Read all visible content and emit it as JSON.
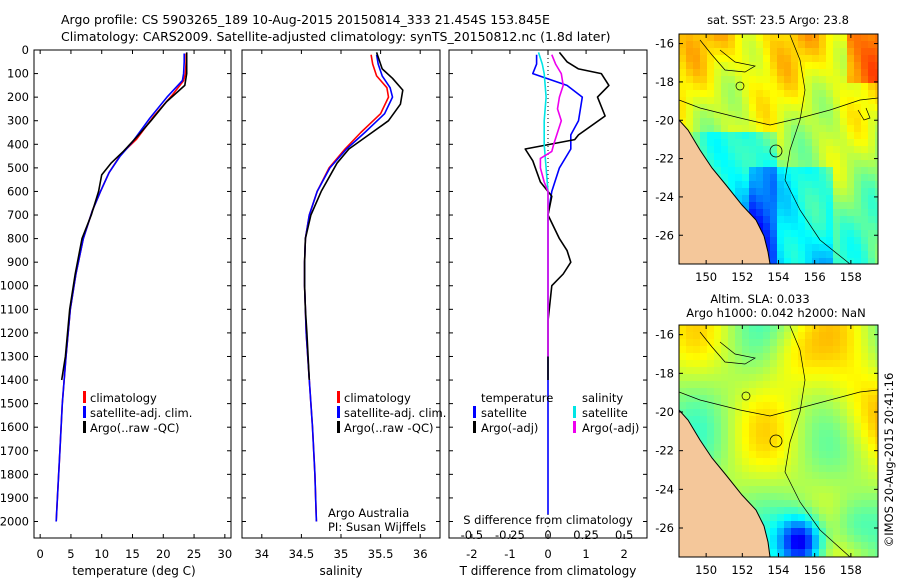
{
  "header": {
    "line1": "Argo profile: CS 5903265_189 10-Aug-2015 20150814_333 21.454S 153.845E",
    "line2": "Climatology: CARS2009. Satellite-adjusted climatology: synTS_20150812.nc (1.8d later)"
  },
  "credit": "©IMOS 20-Aug-2015 20:41:16",
  "colors": {
    "climatology": "#ff0000",
    "satellite": "#0000ff",
    "argo": "#000000",
    "sal_satellite": "#00e5e5",
    "sal_argo": "#ee00ee",
    "land": "#f4c79a"
  },
  "chart_data": [
    {
      "type": "line",
      "id": "temperature",
      "xlabel": "temperature (deg C)",
      "xlim": [
        -1,
        31
      ],
      "xticks": [
        0,
        5,
        10,
        15,
        20,
        25,
        30
      ],
      "ylim": [
        0,
        2070
      ],
      "yticks": [
        0,
        100,
        200,
        300,
        400,
        500,
        600,
        700,
        800,
        900,
        1000,
        1100,
        1200,
        1300,
        1400,
        1500,
        1600,
        1700,
        1800,
        1900,
        2000
      ],
      "legend": [
        "climatology",
        "satellite-adj. clim.",
        "Argo(..raw -QC)"
      ],
      "series": [
        {
          "name": "climatology",
          "color": "#ff0000",
          "points": [
            [
              23.7,
              15
            ],
            [
              23.7,
              50
            ],
            [
              23.6,
              100
            ],
            [
              23.3,
              130
            ],
            [
              21.5,
              190
            ],
            [
              18.5,
              280
            ],
            [
              15.6,
              380
            ],
            [
              13.2,
              440
            ],
            [
              11.2,
              520
            ],
            [
              9.8,
              600
            ],
            [
              8.5,
              680
            ],
            [
              7.0,
              800
            ],
            [
              5.8,
              950
            ],
            [
              4.9,
              1100
            ],
            [
              4.2,
              1300
            ],
            [
              3.6,
              1500
            ],
            [
              3.2,
              1700
            ],
            [
              2.8,
              1900
            ],
            [
              2.6,
              2000
            ]
          ]
        },
        {
          "name": "satellite-adj. clim.",
          "color": "#0000ff",
          "points": [
            [
              23.4,
              15
            ],
            [
              23.4,
              50
            ],
            [
              23.3,
              100
            ],
            [
              23.1,
              130
            ],
            [
              20.6,
              200
            ],
            [
              17.8,
              290
            ],
            [
              15.0,
              390
            ],
            [
              13.0,
              450
            ],
            [
              11.2,
              520
            ],
            [
              9.8,
              600
            ],
            [
              8.5,
              680
            ],
            [
              7.0,
              800
            ],
            [
              5.8,
              950
            ],
            [
              4.9,
              1100
            ],
            [
              4.2,
              1300
            ],
            [
              3.6,
              1500
            ],
            [
              3.2,
              1700
            ],
            [
              2.8,
              1900
            ],
            [
              2.6,
              2000
            ]
          ]
        },
        {
          "name": "Argo(..raw -QC)",
          "color": "#000000",
          "points": [
            [
              23.8,
              10
            ],
            [
              23.8,
              50
            ],
            [
              23.8,
              100
            ],
            [
              23.5,
              150
            ],
            [
              20.5,
              220
            ],
            [
              18.0,
              300
            ],
            [
              16.0,
              360
            ],
            [
              13.5,
              430
            ],
            [
              11.5,
              480
            ],
            [
              10.0,
              530
            ],
            [
              9.5,
              600
            ],
            [
              8.3,
              700
            ],
            [
              6.8,
              800
            ],
            [
              5.7,
              950
            ],
            [
              4.8,
              1100
            ],
            [
              4.1,
              1300
            ],
            [
              3.5,
              1400
            ]
          ]
        }
      ]
    },
    {
      "type": "line",
      "id": "salinity",
      "xlabel": "salinity",
      "xlim": [
        33.75,
        36.25
      ],
      "xticks": [
        34,
        34.5,
        35,
        35.5,
        36
      ],
      "ylim": [
        0,
        2070
      ],
      "legend": [
        "climatology",
        "satellite-adj. clim.",
        "Argo(..raw -QC)"
      ],
      "note": [
        "Argo Australia",
        "PI: Susan Wijffels"
      ],
      "series": [
        {
          "name": "climatology",
          "color": "#ff0000",
          "points": [
            [
              35.38,
              20
            ],
            [
              35.4,
              60
            ],
            [
              35.45,
              110
            ],
            [
              35.58,
              160
            ],
            [
              35.6,
              200
            ],
            [
              35.5,
              270
            ],
            [
              35.25,
              350
            ],
            [
              35.05,
              420
            ],
            [
              34.85,
              500
            ],
            [
              34.7,
              600
            ],
            [
              34.6,
              700
            ],
            [
              34.55,
              800
            ],
            [
              34.54,
              900
            ],
            [
              34.54,
              1000
            ],
            [
              34.56,
              1200
            ],
            [
              34.6,
              1400
            ],
            [
              34.64,
              1600
            ],
            [
              34.67,
              1800
            ],
            [
              34.69,
              2000
            ]
          ]
        },
        {
          "name": "satellite-adj. clim.",
          "color": "#0000ff",
          "points": [
            [
              35.45,
              20
            ],
            [
              35.47,
              60
            ],
            [
              35.52,
              110
            ],
            [
              35.62,
              160
            ],
            [
              35.65,
              200
            ],
            [
              35.55,
              270
            ],
            [
              35.3,
              350
            ],
            [
              35.07,
              420
            ],
            [
              34.86,
              500
            ],
            [
              34.7,
              600
            ],
            [
              34.6,
              700
            ],
            [
              34.55,
              800
            ],
            [
              34.54,
              900
            ],
            [
              34.54,
              1000
            ],
            [
              34.56,
              1200
            ],
            [
              34.6,
              1400
            ],
            [
              34.64,
              1600
            ],
            [
              34.67,
              1800
            ],
            [
              34.69,
              2000
            ]
          ]
        },
        {
          "name": "Argo(..raw -QC)",
          "color": "#000000",
          "points": [
            [
              35.45,
              10
            ],
            [
              35.52,
              80
            ],
            [
              35.65,
              120
            ],
            [
              35.78,
              170
            ],
            [
              35.75,
              230
            ],
            [
              35.6,
              300
            ],
            [
              35.35,
              360
            ],
            [
              35.1,
              420
            ],
            [
              34.95,
              480
            ],
            [
              34.85,
              540
            ],
            [
              34.75,
              600
            ],
            [
              34.62,
              700
            ],
            [
              34.55,
              800
            ],
            [
              34.54,
              900
            ],
            [
              34.54,
              1000
            ],
            [
              34.55,
              1100
            ],
            [
              34.57,
              1200
            ],
            [
              34.6,
              1400
            ]
          ]
        }
      ]
    },
    {
      "type": "line",
      "id": "differences",
      "xlabel": "T difference from climatology",
      "xlabel2": "S difference from climatology",
      "xlim": [
        -2.6,
        2.6
      ],
      "xticks": [
        -2,
        -1,
        0,
        1,
        2
      ],
      "xticks2": [
        -0.5,
        -0.25,
        0,
        0.25,
        0.5
      ],
      "xticklabels2": [
        "-0.5",
        "-0.25",
        "0",
        "0.25",
        "0.5"
      ],
      "legend_temperature": {
        "title": "temperature",
        "items": [
          "satellite",
          "Argo(-adj)"
        ]
      },
      "legend_salinity": {
        "title": "salinity",
        "items": [
          "satellite",
          "Argo(-adj)"
        ]
      },
      "series": [
        {
          "name": "T satellite",
          "color": "#0000ff",
          "points": [
            [
              -0.3,
              20
            ],
            [
              -0.3,
              60
            ],
            [
              -0.4,
              100
            ],
            [
              0.5,
              150
            ],
            [
              0.9,
              200
            ],
            [
              0.8,
              300
            ],
            [
              0.6,
              360
            ],
            [
              0.6,
              420
            ],
            [
              0.3,
              500
            ],
            [
              0.1,
              600
            ],
            [
              0.0,
              700
            ],
            [
              0.0,
              800
            ],
            [
              0.0,
              1300
            ],
            [
              0.0,
              1400
            ],
            [
              0.0,
              1600
            ],
            [
              0.0,
              1800
            ],
            [
              0.0,
              1970
            ]
          ]
        },
        {
          "name": "T Argo(-adj)",
          "color": "#000000",
          "points": [
            [
              0.3,
              10
            ],
            [
              0.5,
              50
            ],
            [
              0.8,
              80
            ],
            [
              1.4,
              100
            ],
            [
              1.6,
              150
            ],
            [
              1.3,
              200
            ],
            [
              1.5,
              280
            ],
            [
              0.8,
              360
            ],
            [
              0.7,
              380
            ],
            [
              -0.6,
              420
            ],
            [
              -0.4,
              470
            ],
            [
              -0.2,
              560
            ],
            [
              0.1,
              620
            ],
            [
              0.0,
              700
            ],
            [
              0.3,
              800
            ],
            [
              0.5,
              850
            ],
            [
              0.6,
              900
            ],
            [
              0.4,
              950
            ],
            [
              0.1,
              1000
            ],
            [
              0.0,
              1150
            ],
            [
              0.0,
              1300
            ],
            [
              0.0,
              1400
            ]
          ]
        },
        {
          "name": "S satellite",
          "color": "#00e5e5",
          "points": [
            [
              -0.25,
              10
            ],
            [
              -0.15,
              60
            ],
            [
              -0.1,
              100
            ],
            [
              -0.05,
              200
            ],
            [
              -0.1,
              300
            ],
            [
              -0.1,
              400
            ],
            [
              -0.05,
              500
            ],
            [
              0.0,
              600
            ],
            [
              0.0,
              700
            ],
            [
              0.0,
              900
            ],
            [
              0.0,
              1100
            ],
            [
              0.0,
              1300
            ]
          ]
        },
        {
          "name": "S Argo(-adj)",
          "color": "#ee00ee",
          "points": [
            [
              0.1,
              20
            ],
            [
              0.2,
              60
            ],
            [
              0.35,
              100
            ],
            [
              0.4,
              150
            ],
            [
              0.3,
              200
            ],
            [
              0.25,
              250
            ],
            [
              0.35,
              300
            ],
            [
              0.25,
              350
            ],
            [
              0.15,
              400
            ],
            [
              0.1,
              430
            ],
            [
              -0.2,
              460
            ],
            [
              -0.2,
              500
            ],
            [
              -0.1,
              560
            ],
            [
              0.0,
              600
            ],
            [
              0.0,
              700
            ],
            [
              0.0,
              1300
            ]
          ]
        }
      ]
    },
    {
      "type": "heatmap",
      "id": "sst_map",
      "title": "sat. SST: 23.5 Argo: 23.8",
      "xticks": [
        150,
        152,
        154,
        156,
        158
      ],
      "yticks": [
        -16,
        -18,
        -20,
        -22,
        -24,
        -26
      ],
      "xlim": [
        148.5,
        159.5
      ],
      "ylim": [
        -27.5,
        -15.5
      ]
    },
    {
      "type": "heatmap",
      "id": "sla_map",
      "title1": "Altim. SLA: 0.033",
      "title2": "Argo h1000: 0.042 h2000: NaN",
      "xticks": [
        150,
        152,
        154,
        156,
        158
      ],
      "yticks": [
        -16,
        -18,
        -20,
        -22,
        -24,
        -26
      ],
      "xlim": [
        148.5,
        159.5
      ],
      "ylim": [
        -27.5,
        -15.5
      ]
    }
  ]
}
